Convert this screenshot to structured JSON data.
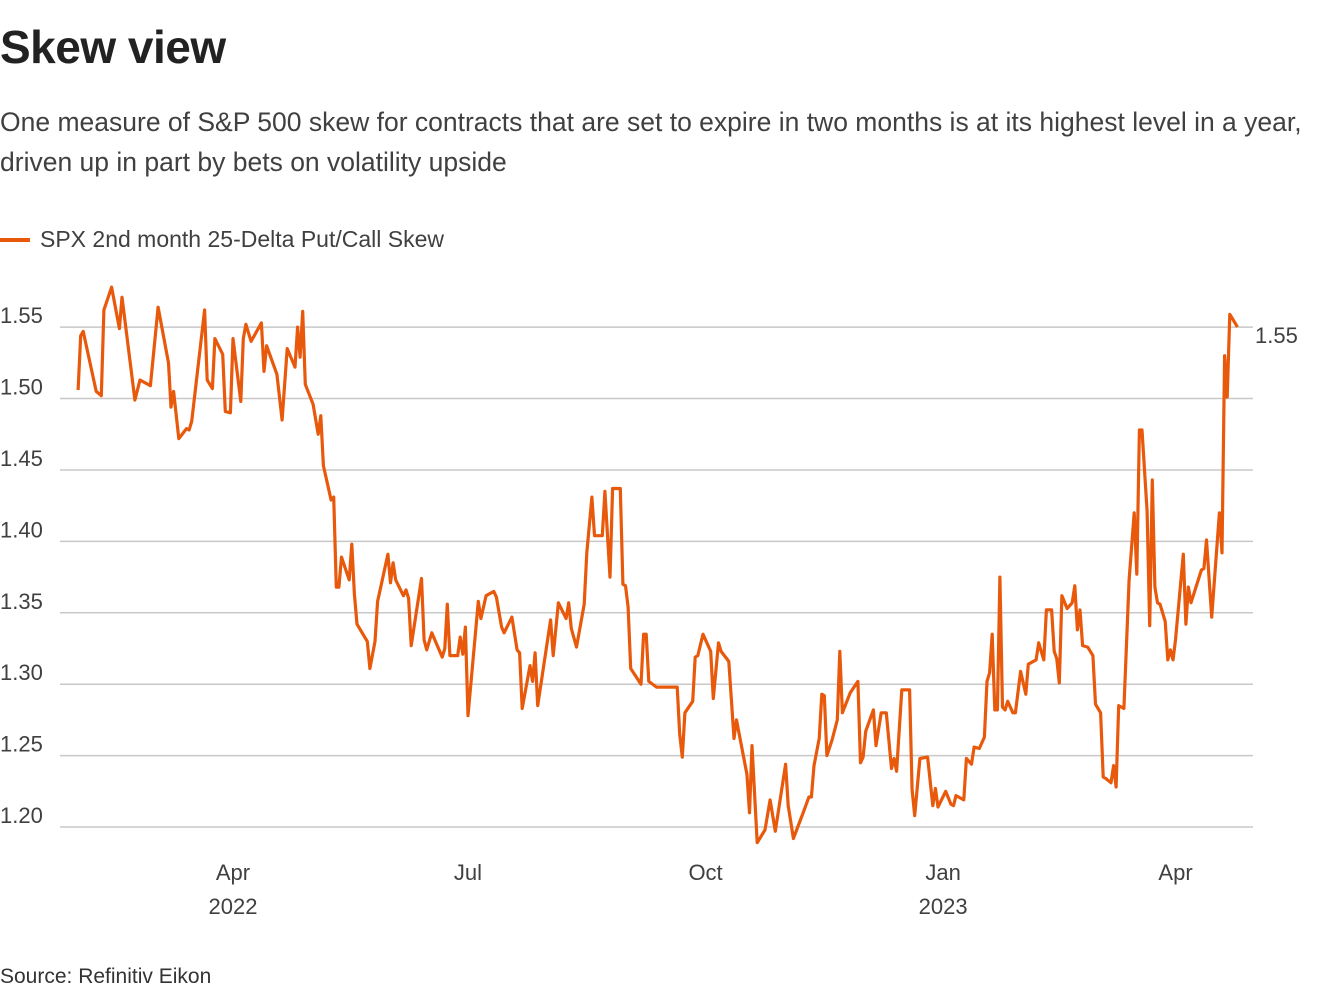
{
  "title": "Skew view",
  "subtitle": "One measure of S&P 500 skew for contracts that are set to expire in two months is at its highest level in a year, driven up in part by bets on volatility upside",
  "source": "Source: Refinitiv Eikon",
  "chart_data": {
    "type": "line",
    "title": "Skew view",
    "xlabel": "",
    "ylabel": "",
    "legend": "top-left",
    "grid": "horizontal",
    "line_color": "#e8590c",
    "xlim": [
      "2022-01-24",
      "2023-05-01"
    ],
    "ylim": [
      1.18,
      1.58
    ],
    "y_ticks": [
      "1.20",
      "1.25",
      "1.30",
      "1.35",
      "1.40",
      "1.45",
      "1.50",
      "1.55"
    ],
    "x_ticks": [
      {
        "date": "2022-04-01",
        "label": "Apr",
        "sublabel": "2022"
      },
      {
        "date": "2022-07-01",
        "label": "Jul",
        "sublabel": ""
      },
      {
        "date": "2022-10-01",
        "label": "Oct",
        "sublabel": ""
      },
      {
        "date": "2023-01-01",
        "label": "Jan",
        "sublabel": "2023"
      },
      {
        "date": "2023-04-01",
        "label": "Apr",
        "sublabel": ""
      }
    ],
    "end_label": "1.55",
    "series": [
      {
        "name": "SPX 2nd month 25-Delta Put/Call Skew",
        "points": [
          [
            "2022-01-31",
            1.506
          ],
          [
            "2022-02-01",
            1.544
          ],
          [
            "2022-02-02",
            1.547
          ],
          [
            "2022-02-07",
            1.505
          ],
          [
            "2022-02-09",
            1.502
          ],
          [
            "2022-02-10",
            1.562
          ],
          [
            "2022-02-13",
            1.578
          ],
          [
            "2022-02-16",
            1.549
          ],
          [
            "2022-02-17",
            1.571
          ],
          [
            "2022-02-22",
            1.499
          ],
          [
            "2022-02-24",
            1.513
          ],
          [
            "2022-02-28",
            1.509
          ],
          [
            "2022-03-03",
            1.564
          ],
          [
            "2022-03-07",
            1.525
          ],
          [
            "2022-03-08",
            1.494
          ],
          [
            "2022-03-09",
            1.505
          ],
          [
            "2022-03-11",
            1.472
          ],
          [
            "2022-03-14",
            1.479
          ],
          [
            "2022-03-15",
            1.478
          ],
          [
            "2022-03-16",
            1.484
          ],
          [
            "2022-03-21",
            1.562
          ],
          [
            "2022-03-22",
            1.513
          ],
          [
            "2022-03-24",
            1.507
          ],
          [
            "2022-03-25",
            1.542
          ],
          [
            "2022-03-28",
            1.531
          ],
          [
            "2022-03-29",
            1.491
          ],
          [
            "2022-03-31",
            1.49
          ],
          [
            "2022-04-01",
            1.542
          ],
          [
            "2022-04-04",
            1.498
          ],
          [
            "2022-04-05",
            1.542
          ],
          [
            "2022-04-06",
            1.552
          ],
          [
            "2022-04-08",
            1.54
          ],
          [
            "2022-04-12",
            1.553
          ],
          [
            "2022-04-13",
            1.519
          ],
          [
            "2022-04-14",
            1.537
          ],
          [
            "2022-04-18",
            1.517
          ],
          [
            "2022-04-20",
            1.485
          ],
          [
            "2022-04-22",
            1.535
          ],
          [
            "2022-04-25",
            1.522
          ],
          [
            "2022-04-26",
            1.55
          ],
          [
            "2022-04-27",
            1.529
          ],
          [
            "2022-04-28",
            1.561
          ],
          [
            "2022-04-29",
            1.51
          ],
          [
            "2022-05-02",
            1.496
          ],
          [
            "2022-05-04",
            1.475
          ],
          [
            "2022-05-05",
            1.488
          ],
          [
            "2022-05-06",
            1.453
          ],
          [
            "2022-05-09",
            1.429
          ],
          [
            "2022-05-10",
            1.431
          ],
          [
            "2022-05-11",
            1.368
          ],
          [
            "2022-05-12",
            1.368
          ],
          [
            "2022-05-13",
            1.389
          ],
          [
            "2022-05-16",
            1.373
          ],
          [
            "2022-05-17",
            1.398
          ],
          [
            "2022-05-18",
            1.363
          ],
          [
            "2022-05-19",
            1.342
          ],
          [
            "2022-05-23",
            1.33
          ],
          [
            "2022-05-24",
            1.311
          ],
          [
            "2022-05-26",
            1.33
          ],
          [
            "2022-05-27",
            1.358
          ],
          [
            "2022-05-31",
            1.391
          ],
          [
            "2022-06-01",
            1.371
          ],
          [
            "2022-06-02",
            1.385
          ],
          [
            "2022-06-03",
            1.373
          ],
          [
            "2022-06-06",
            1.362
          ],
          [
            "2022-06-07",
            1.366
          ],
          [
            "2022-06-08",
            1.36
          ],
          [
            "2022-06-09",
            1.327
          ],
          [
            "2022-06-13",
            1.374
          ],
          [
            "2022-06-14",
            1.331
          ],
          [
            "2022-06-15",
            1.324
          ],
          [
            "2022-06-17",
            1.336
          ],
          [
            "2022-06-21",
            1.319
          ],
          [
            "2022-06-22",
            1.325
          ],
          [
            "2022-06-23",
            1.356
          ],
          [
            "2022-06-24",
            1.32
          ],
          [
            "2022-06-27",
            1.32
          ],
          [
            "2022-06-28",
            1.333
          ],
          [
            "2022-06-29",
            1.321
          ],
          [
            "2022-06-30",
            1.34
          ],
          [
            "2022-07-01",
            1.278
          ],
          [
            "2022-07-05",
            1.358
          ],
          [
            "2022-07-06",
            1.346
          ],
          [
            "2022-07-08",
            1.362
          ],
          [
            "2022-07-11",
            1.365
          ],
          [
            "2022-07-12",
            1.361
          ],
          [
            "2022-07-14",
            1.34
          ],
          [
            "2022-07-15",
            1.336
          ],
          [
            "2022-07-18",
            1.347
          ],
          [
            "2022-07-20",
            1.324
          ],
          [
            "2022-07-21",
            1.322
          ],
          [
            "2022-07-22",
            1.283
          ],
          [
            "2022-07-25",
            1.313
          ],
          [
            "2022-07-26",
            1.302
          ],
          [
            "2022-07-27",
            1.322
          ],
          [
            "2022-07-28",
            1.285
          ],
          [
            "2022-08-02",
            1.345
          ],
          [
            "2022-08-03",
            1.32
          ],
          [
            "2022-08-05",
            1.357
          ],
          [
            "2022-08-08",
            1.346
          ],
          [
            "2022-08-09",
            1.357
          ],
          [
            "2022-08-10",
            1.339
          ],
          [
            "2022-08-12",
            1.326
          ],
          [
            "2022-08-15",
            1.356
          ],
          [
            "2022-08-16",
            1.392
          ],
          [
            "2022-08-18",
            1.431
          ],
          [
            "2022-08-19",
            1.404
          ],
          [
            "2022-08-22",
            1.404
          ],
          [
            "2022-08-23",
            1.435
          ],
          [
            "2022-08-25",
            1.375
          ],
          [
            "2022-08-26",
            1.437
          ],
          [
            "2022-08-29",
            1.437
          ],
          [
            "2022-08-30",
            1.37
          ],
          [
            "2022-08-31",
            1.369
          ],
          [
            "2022-09-01",
            1.354
          ],
          [
            "2022-09-02",
            1.311
          ],
          [
            "2022-09-06",
            1.3
          ],
          [
            "2022-09-07",
            1.335
          ],
          [
            "2022-09-08",
            1.335
          ],
          [
            "2022-09-09",
            1.302
          ],
          [
            "2022-09-12",
            1.298
          ],
          [
            "2022-09-20",
            1.298
          ],
          [
            "2022-09-21",
            1.265
          ],
          [
            "2022-09-22",
            1.249
          ],
          [
            "2022-09-23",
            1.28
          ],
          [
            "2022-09-26",
            1.288
          ],
          [
            "2022-09-27",
            1.319
          ],
          [
            "2022-09-28",
            1.32
          ],
          [
            "2022-09-30",
            1.335
          ],
          [
            "2022-10-03",
            1.323
          ],
          [
            "2022-10-04",
            1.29
          ],
          [
            "2022-10-06",
            1.329
          ],
          [
            "2022-10-07",
            1.323
          ],
          [
            "2022-10-10",
            1.316
          ],
          [
            "2022-10-12",
            1.262
          ],
          [
            "2022-10-13",
            1.275
          ],
          [
            "2022-10-17",
            1.237
          ],
          [
            "2022-10-18",
            1.21
          ],
          [
            "2022-10-19",
            1.257
          ],
          [
            "2022-10-21",
            1.189
          ],
          [
            "2022-10-24",
            1.198
          ],
          [
            "2022-10-26",
            1.219
          ],
          [
            "2022-10-28",
            1.197
          ],
          [
            "2022-11-01",
            1.244
          ],
          [
            "2022-11-02",
            1.215
          ],
          [
            "2022-11-04",
            1.192
          ],
          [
            "2022-11-08",
            1.211
          ],
          [
            "2022-11-10",
            1.221
          ],
          [
            "2022-11-11",
            1.221
          ],
          [
            "2022-11-12",
            1.243
          ],
          [
            "2022-11-14",
            1.262
          ],
          [
            "2022-11-15",
            1.293
          ],
          [
            "2022-11-16",
            1.292
          ],
          [
            "2022-11-17",
            1.25
          ],
          [
            "2022-11-19",
            1.261
          ],
          [
            "2022-11-21",
            1.275
          ],
          [
            "2022-11-22",
            1.323
          ],
          [
            "2022-11-23",
            1.28
          ],
          [
            "2022-11-26",
            1.294
          ],
          [
            "2022-11-29",
            1.302
          ],
          [
            "2022-11-30",
            1.245
          ],
          [
            "2022-12-01",
            1.249
          ],
          [
            "2022-12-02",
            1.267
          ],
          [
            "2022-12-05",
            1.282
          ],
          [
            "2022-12-06",
            1.257
          ],
          [
            "2022-12-08",
            1.28
          ],
          [
            "2022-12-10",
            1.28
          ],
          [
            "2022-12-12",
            1.241
          ],
          [
            "2022-12-13",
            1.248
          ],
          [
            "2022-12-14",
            1.239
          ],
          [
            "2022-12-16",
            1.296
          ],
          [
            "2022-12-19",
            1.296
          ],
          [
            "2022-12-20",
            1.226
          ],
          [
            "2022-12-21",
            1.208
          ],
          [
            "2022-12-23",
            1.248
          ],
          [
            "2022-12-26",
            1.249
          ],
          [
            "2022-12-28",
            1.215
          ],
          [
            "2022-12-29",
            1.227
          ],
          [
            "2022-12-30",
            1.214
          ],
          [
            "2023-01-02",
            1.225
          ],
          [
            "2023-01-04",
            1.216
          ],
          [
            "2023-01-05",
            1.215
          ],
          [
            "2023-01-06",
            1.222
          ],
          [
            "2023-01-09",
            1.219
          ],
          [
            "2023-01-10",
            1.248
          ],
          [
            "2023-01-12",
            1.244
          ],
          [
            "2023-01-13",
            1.256
          ],
          [
            "2023-01-15",
            1.255
          ],
          [
            "2023-01-17",
            1.263
          ],
          [
            "2023-01-18",
            1.302
          ],
          [
            "2023-01-19",
            1.308
          ],
          [
            "2023-01-20",
            1.335
          ],
          [
            "2023-01-21",
            1.282
          ],
          [
            "2023-01-22",
            1.282
          ],
          [
            "2023-01-23",
            1.375
          ],
          [
            "2023-01-24",
            1.284
          ],
          [
            "2023-01-25",
            1.282
          ],
          [
            "2023-01-26",
            1.288
          ],
          [
            "2023-01-28",
            1.28
          ],
          [
            "2023-01-29",
            1.28
          ],
          [
            "2023-01-31",
            1.309
          ],
          [
            "2023-02-02",
            1.293
          ],
          [
            "2023-02-03",
            1.314
          ],
          [
            "2023-02-06",
            1.317
          ],
          [
            "2023-02-07",
            1.329
          ],
          [
            "2023-02-09",
            1.317
          ],
          [
            "2023-02-10",
            1.352
          ],
          [
            "2023-02-12",
            1.352
          ],
          [
            "2023-02-13",
            1.323
          ],
          [
            "2023-02-14",
            1.318
          ],
          [
            "2023-02-15",
            1.301
          ],
          [
            "2023-02-16",
            1.362
          ],
          [
            "2023-02-18",
            1.353
          ],
          [
            "2023-02-20",
            1.357
          ],
          [
            "2023-02-21",
            1.369
          ],
          [
            "2023-02-22",
            1.338
          ],
          [
            "2023-02-23",
            1.352
          ],
          [
            "2023-02-24",
            1.327
          ],
          [
            "2023-02-26",
            1.326
          ],
          [
            "2023-02-28",
            1.32
          ],
          [
            "2023-03-01",
            1.286
          ],
          [
            "2023-03-03",
            1.28
          ],
          [
            "2023-03-04",
            1.235
          ],
          [
            "2023-03-05",
            1.234
          ],
          [
            "2023-03-07",
            1.231
          ],
          [
            "2023-03-08",
            1.243
          ],
          [
            "2023-03-09",
            1.228
          ],
          [
            "2023-03-10",
            1.285
          ],
          [
            "2023-03-12",
            1.283
          ],
          [
            "2023-03-14",
            1.373
          ],
          [
            "2023-03-16",
            1.42
          ],
          [
            "2023-03-17",
            1.377
          ],
          [
            "2023-03-18",
            1.478
          ],
          [
            "2023-03-19",
            1.478
          ],
          [
            "2023-03-21",
            1.421
          ],
          [
            "2023-03-22",
            1.341
          ],
          [
            "2023-03-23",
            1.443
          ],
          [
            "2023-03-24",
            1.368
          ],
          [
            "2023-03-25",
            1.357
          ],
          [
            "2023-03-26",
            1.356
          ],
          [
            "2023-03-28",
            1.344
          ],
          [
            "2023-03-29",
            1.317
          ],
          [
            "2023-03-30",
            1.324
          ],
          [
            "2023-03-31",
            1.317
          ],
          [
            "2023-04-01",
            1.331
          ],
          [
            "2023-04-04",
            1.391
          ],
          [
            "2023-04-05",
            1.342
          ],
          [
            "2023-04-06",
            1.368
          ],
          [
            "2023-04-07",
            1.357
          ],
          [
            "2023-04-11",
            1.38
          ],
          [
            "2023-04-12",
            1.381
          ],
          [
            "2023-04-13",
            1.401
          ],
          [
            "2023-04-15",
            1.347
          ],
          [
            "2023-04-18",
            1.42
          ],
          [
            "2023-04-19",
            1.392
          ],
          [
            "2023-04-20",
            1.53
          ],
          [
            "2023-04-21",
            1.501
          ],
          [
            "2023-04-22",
            1.559
          ],
          [
            "2023-04-25",
            1.55
          ]
        ]
      }
    ]
  }
}
